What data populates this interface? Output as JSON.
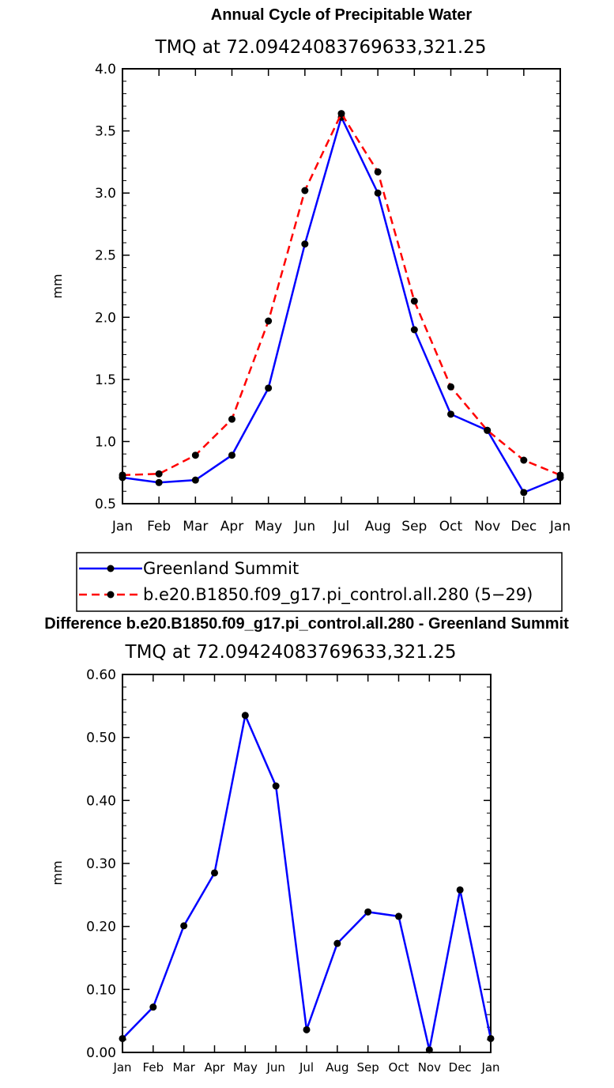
{
  "chart_data": [
    {
      "type": "line",
      "title": "Annual Cycle of Precipitable Water",
      "subtitle": "TMQ  at  72.09424083769633,321.25",
      "xlabel": "",
      "ylabel": "mm",
      "categories": [
        "Jan",
        "Feb",
        "Mar",
        "Apr",
        "May",
        "Jun",
        "Jul",
        "Aug",
        "Sep",
        "Oct",
        "Nov",
        "Dec",
        "Jan"
      ],
      "ylim": [
        0.5,
        4.0
      ],
      "yticks": [
        0.5,
        1.0,
        1.5,
        2.0,
        2.5,
        3.0,
        3.5,
        4.0
      ],
      "ytick_labels": [
        "0.5",
        "1.0",
        "1.5",
        "2.0",
        "2.5",
        "3.0",
        "3.5",
        "4.0"
      ],
      "legend_position": "below",
      "series": [
        {
          "name": "Greenland Summit",
          "color": "#0000ff",
          "dash": "solid",
          "values": [
            0.71,
            0.67,
            0.69,
            0.89,
            1.43,
            2.59,
            3.61,
            3.0,
            1.9,
            1.22,
            1.09,
            0.59,
            0.71
          ]
        },
        {
          "name": "b.e20.B1850.f09_g17.pi_control.all.280 (5−29)",
          "color": "#ff0000",
          "dash": "dashed",
          "values": [
            0.73,
            0.74,
            0.89,
            1.18,
            1.97,
            3.02,
            3.64,
            3.17,
            2.13,
            1.44,
            1.09,
            0.85,
            0.73
          ]
        }
      ]
    },
    {
      "type": "line",
      "title": "Difference b.e20.B1850.f09_g17.pi_control.all.280 - Greenland Summit",
      "subtitle": "TMQ  at  72.09424083769633,321.25",
      "xlabel": "",
      "ylabel": "mm",
      "categories": [
        "Jan",
        "Feb",
        "Mar",
        "Apr",
        "May",
        "Jun",
        "Jul",
        "Aug",
        "Sep",
        "Oct",
        "Nov",
        "Dec",
        "Jan"
      ],
      "ylim": [
        0.0,
        0.6
      ],
      "yticks": [
        0.0,
        0.1,
        0.2,
        0.3,
        0.4,
        0.5,
        0.6
      ],
      "ytick_labels": [
        "0.00",
        "0.10",
        "0.20",
        "0.30",
        "0.40",
        "0.50",
        "0.60"
      ],
      "series": [
        {
          "color": "#0000ff",
          "dash": "solid",
          "values": [
            0.022,
            0.072,
            0.201,
            0.285,
            0.535,
            0.423,
            0.036,
            0.173,
            0.223,
            0.216,
            0.004,
            0.258,
            0.022
          ]
        }
      ]
    }
  ]
}
